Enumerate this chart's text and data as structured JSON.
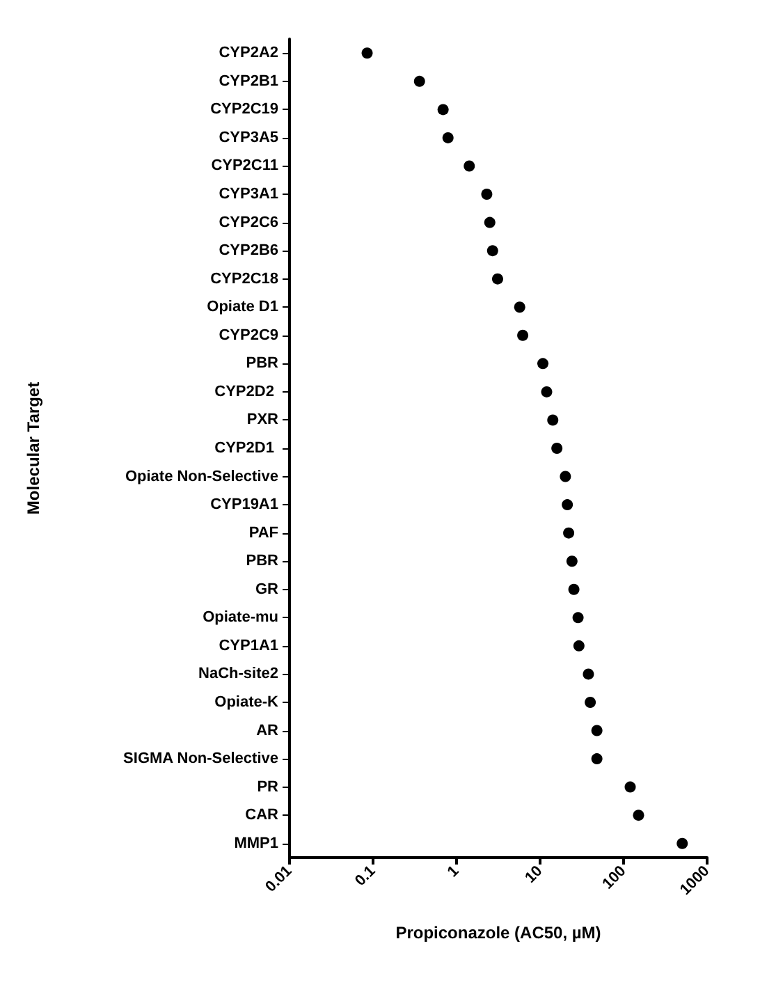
{
  "chart_data": {
    "type": "scatter",
    "orientation": "horizontal",
    "xlabel": "Propiconazole (AC50, µM)",
    "ylabel": "Molecular Target",
    "categories": [
      "CYP2A2",
      "CYP2B1",
      "CYP2C19",
      "CYP3A5",
      "CYP2C11",
      "CYP3A1",
      "CYP2C6",
      "CYP2B6",
      "CYP2C18",
      "Opiate D1",
      "CYP2C9",
      "PBR",
      "CYP2D2 ",
      "PXR",
      "CYP2D1 ",
      "Opiate Non-Selective",
      "CYP19A1",
      "PAF",
      "PBR",
      "GR",
      "Opiate-mu",
      "CYP1A1",
      "NaCh-site2",
      "Opiate-K",
      "AR",
      "SIGMA Non-Selective",
      "PR",
      "CAR",
      "MMP1"
    ],
    "values": [
      0.085,
      0.36,
      0.69,
      0.79,
      1.42,
      2.3,
      2.5,
      2.7,
      3.1,
      5.7,
      6.2,
      10.8,
      12,
      14.2,
      15.9,
      20.1,
      21.2,
      22,
      24.1,
      25.4,
      28.5,
      29.2,
      37.9,
      39.9,
      47.9,
      47.9,
      120,
      151,
      504
    ],
    "color": "#000000",
    "marker": "circle",
    "log": "x",
    "xlim": [
      0.01,
      1000
    ],
    "xticks": [
      0.01,
      0.1,
      1,
      10,
      100,
      1000
    ],
    "grid": false
  }
}
